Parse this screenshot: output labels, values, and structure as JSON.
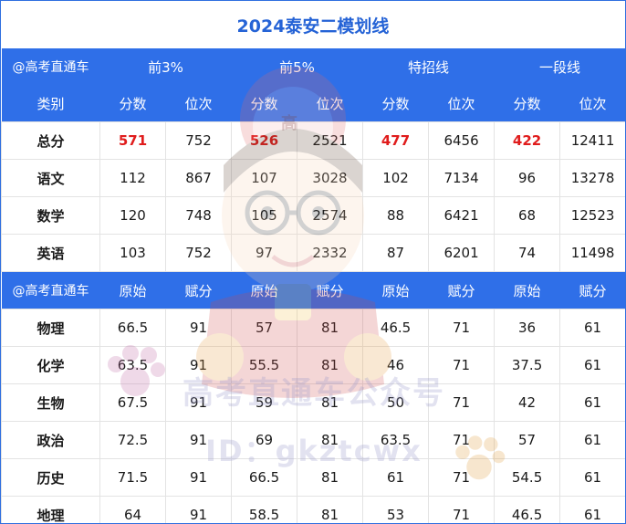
{
  "title": "2024泰安二模划线",
  "header1": {
    "brand": "@高考直通车",
    "groups": [
      "前3%",
      "前5%",
      "特招线",
      "一段线"
    ]
  },
  "header2": [
    "类别",
    "分数",
    "位次",
    "分数",
    "位次",
    "分数",
    "位次",
    "分数",
    "位次"
  ],
  "rows_a": [
    {
      "label": "总分",
      "cells": [
        "571",
        "752",
        "526",
        "2521",
        "477",
        "6456",
        "422",
        "12411"
      ]
    },
    {
      "label": "语文",
      "cells": [
        "112",
        "867",
        "107",
        "3028",
        "102",
        "7134",
        "96",
        "13278"
      ]
    },
    {
      "label": "数学",
      "cells": [
        "120",
        "748",
        "105",
        "2574",
        "88",
        "6421",
        "68",
        "12523"
      ]
    },
    {
      "label": "英语",
      "cells": [
        "103",
        "752",
        "97",
        "2332",
        "87",
        "6201",
        "74",
        "11498"
      ]
    }
  ],
  "header3": [
    "@高考直通车",
    "原始",
    "赋分",
    "原始",
    "赋分",
    "原始",
    "赋分",
    "原始",
    "赋分"
  ],
  "rows_b": [
    {
      "label": "物理",
      "cells": [
        "66.5",
        "91",
        "57",
        "81",
        "46.5",
        "71",
        "36",
        "61"
      ]
    },
    {
      "label": "化学",
      "cells": [
        "63.5",
        "91",
        "55.5",
        "81",
        "46",
        "71",
        "37.5",
        "61"
      ]
    },
    {
      "label": "生物",
      "cells": [
        "67.5",
        "91",
        "59",
        "81",
        "50",
        "71",
        "42",
        "61"
      ]
    },
    {
      "label": "政治",
      "cells": [
        "72.5",
        "91",
        "69",
        "81",
        "63.5",
        "71",
        "57",
        "61"
      ]
    },
    {
      "label": "历史",
      "cells": [
        "71.5",
        "91",
        "66.5",
        "81",
        "61",
        "71",
        "54.5",
        "61"
      ]
    },
    {
      "label": "地理",
      "cells": [
        "64",
        "91",
        "58.5",
        "81",
        "53",
        "71",
        "46.5",
        "61"
      ]
    }
  ],
  "watermark": {
    "text": "高考直通车公众号",
    "id": "ID：gkztcwx",
    "badge": "高"
  },
  "colors": {
    "accent": "#2f6fe8",
    "title": "#2563d6",
    "highlight": "#e01c1c"
  }
}
